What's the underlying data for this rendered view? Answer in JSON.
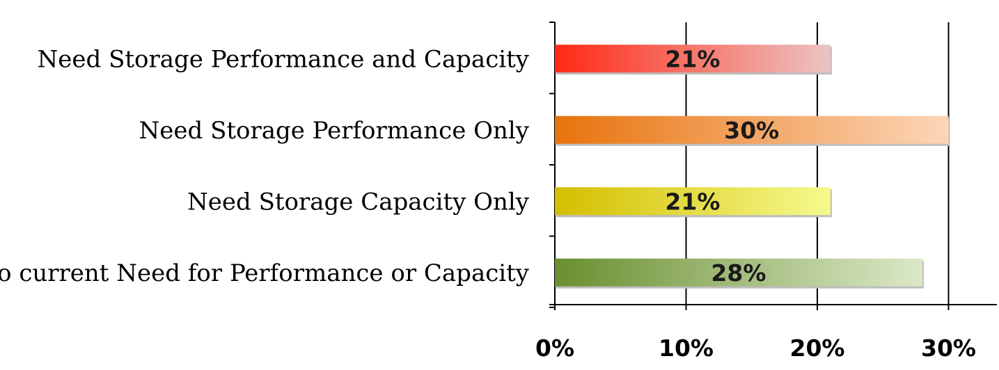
{
  "chart_data": {
    "type": "bar",
    "orientation": "horizontal",
    "categories": [
      "Need Storage Performance and Capacity",
      "Need Storage Performance Only",
      "Need Storage Capacity Only",
      "No current Need for Performance or Capacity"
    ],
    "values": [
      21,
      30,
      21,
      28
    ],
    "value_labels": [
      "21%",
      "30%",
      "21%",
      "28%"
    ],
    "bar_colors": [
      "#ff2a14",
      "#e8730c",
      "#d4be00",
      "#6a9030"
    ],
    "bar_colors_end": [
      "#ecc4c4",
      "#fcd6b8",
      "#f5fa8c",
      "#dce8c8"
    ],
    "x_ticks": [
      0,
      10,
      20,
      30
    ],
    "x_tick_labels": [
      "0%",
      "10%",
      "20%",
      "30%"
    ],
    "xlim": [
      0,
      34
    ],
    "grid": true,
    "legend": "none"
  }
}
